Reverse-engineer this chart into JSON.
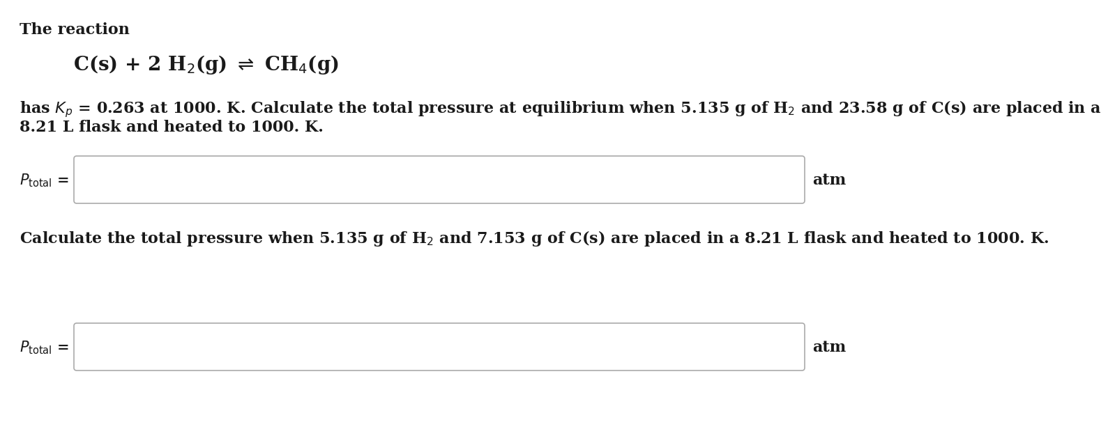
{
  "background_color": "#ffffff",
  "title_line": "The reaction",
  "reaction_line": "C(s) + 2 H$_2$(g) $\\rightleftharpoons$ CH$_4$(g)",
  "problem1_line1": "has $K_p$ = 0.263 at 1000. K. Calculate the total pressure at equilibrium when 5.135 g of H$_2$ and 23.58 g of C(s) are placed in a",
  "problem1_line2": "8.21 L flask and heated to 1000. K.",
  "problem2_line": "Calculate the total pressure when 5.135 g of H$_2$ and 7.153 g of C(s) are placed in a 8.21 L flask and heated to 1000. K.",
  "ptotal_label": "$P_{\\mathrm{total}}$ =",
  "unit_label": "atm",
  "text_color": "#1a1a1a",
  "box_edge_color": "#aaaaaa",
  "font_size_main": 16,
  "font_size_reaction": 18,
  "font_size_ptotal": 15
}
